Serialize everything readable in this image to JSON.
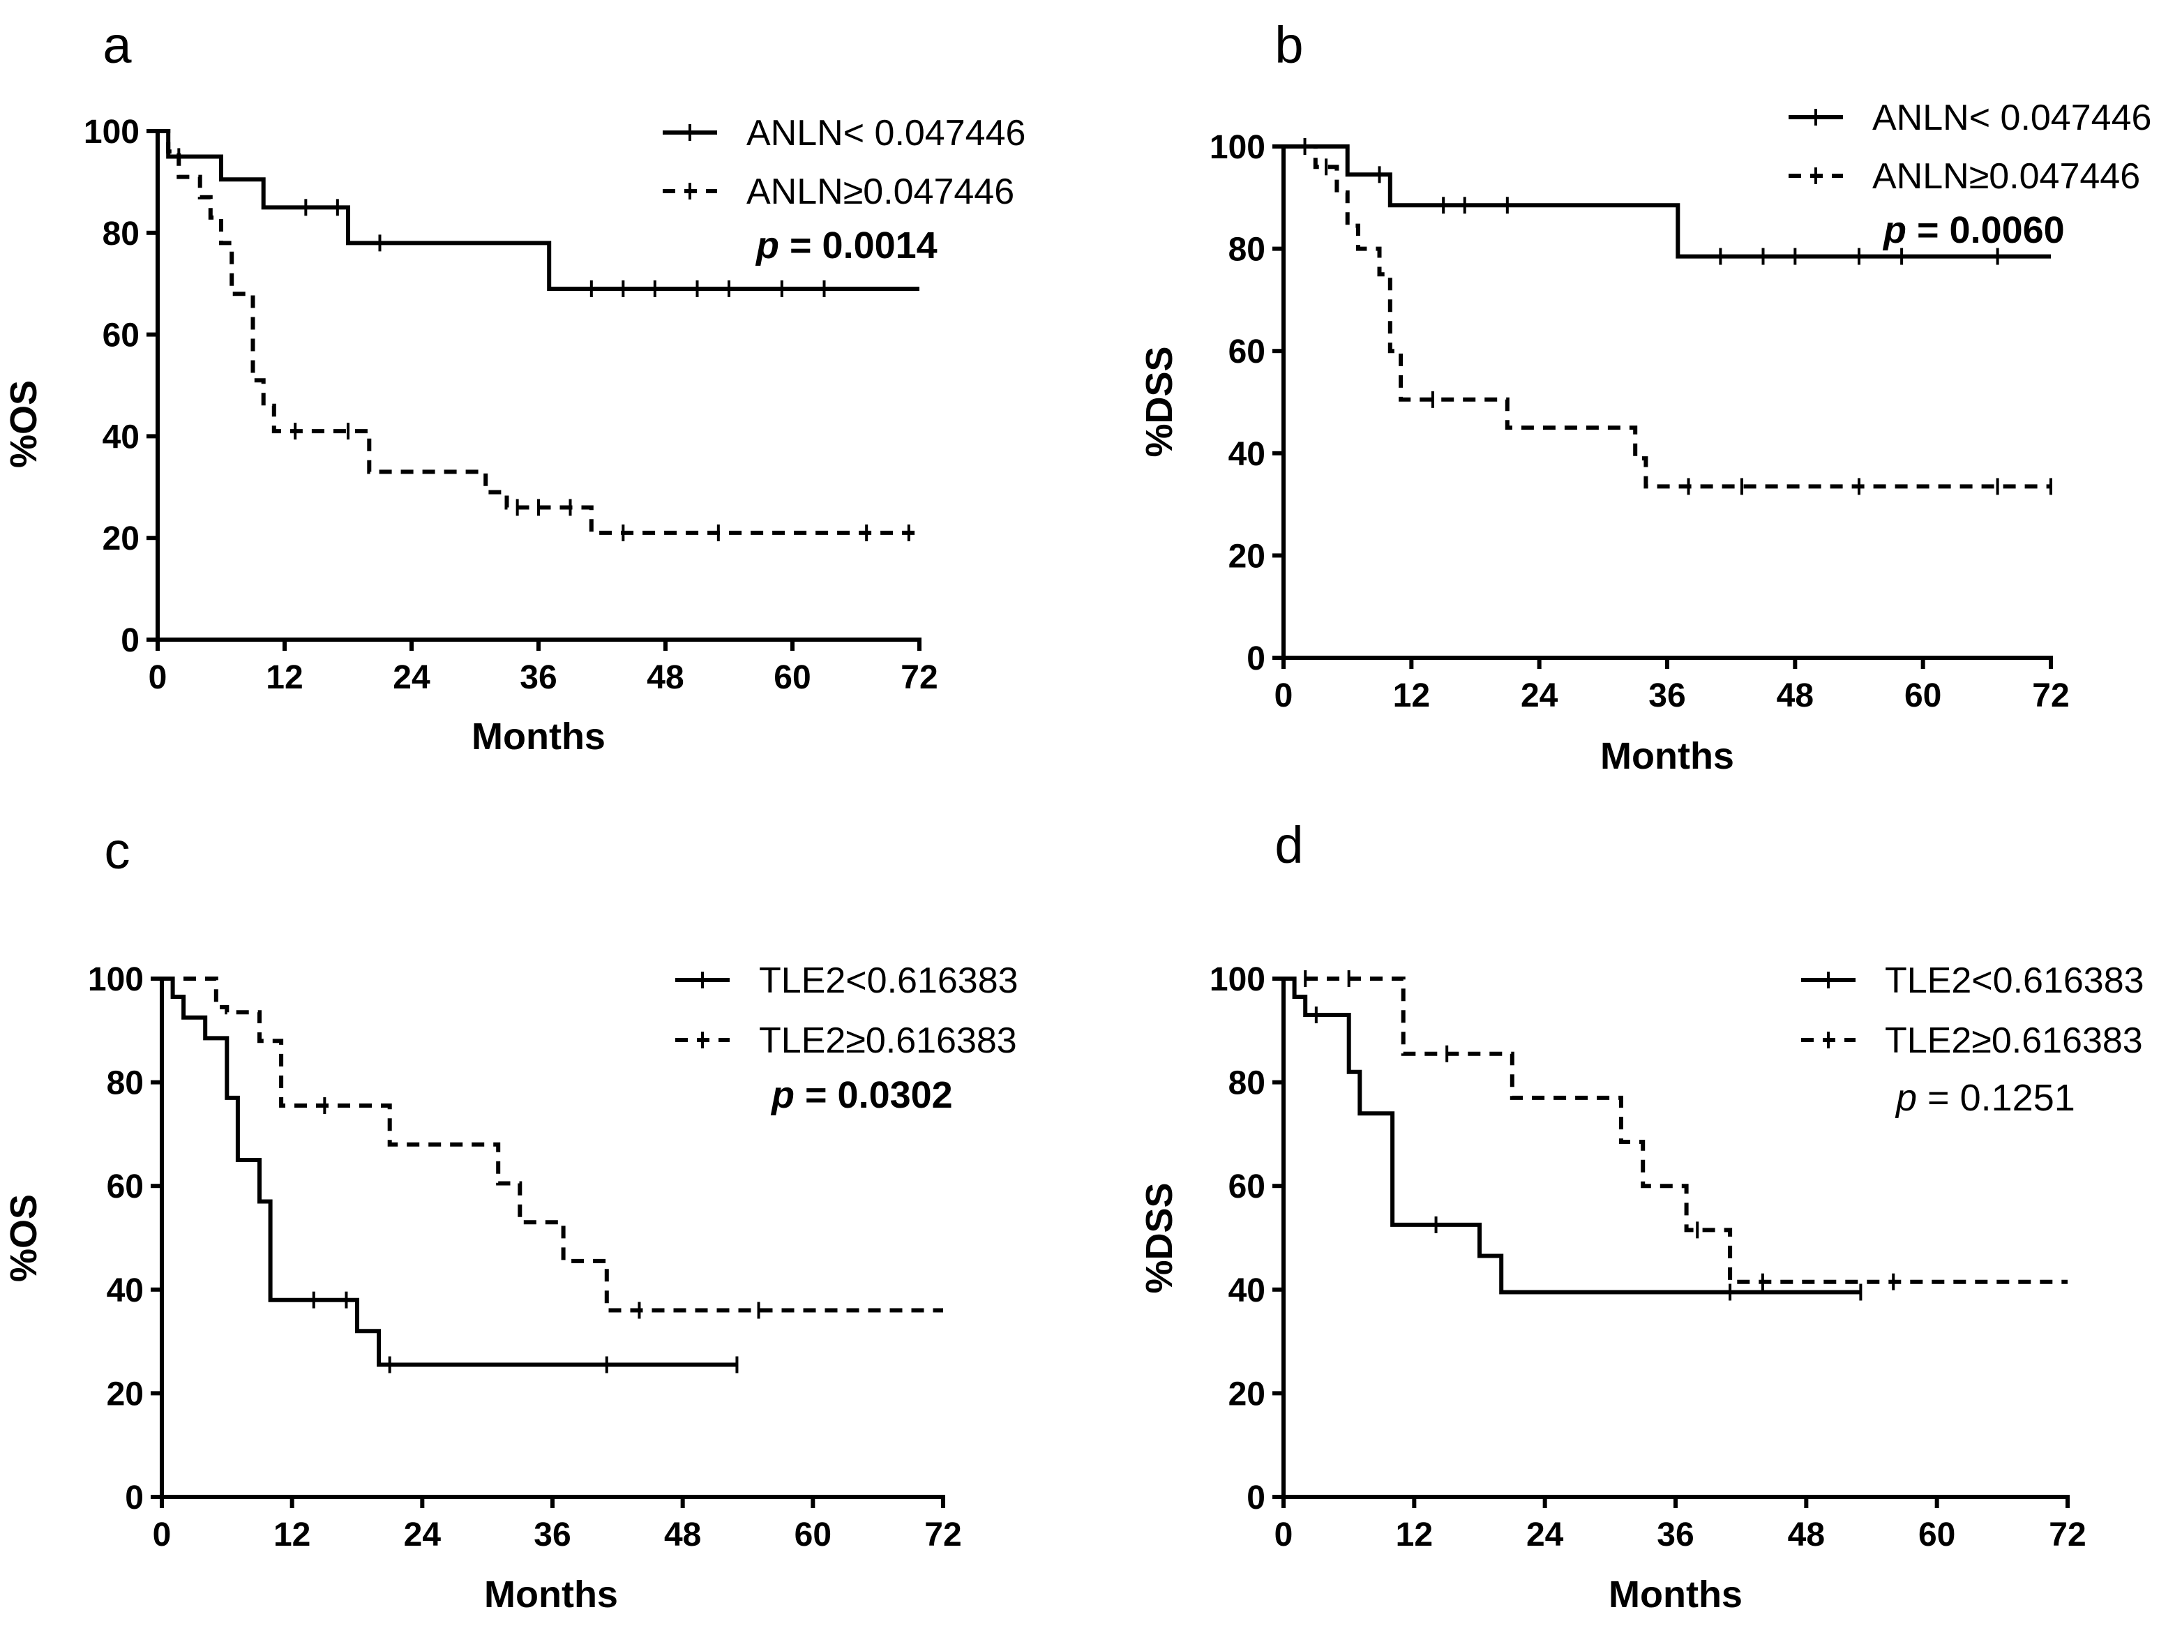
{
  "chart_data": [
    {
      "type": "line",
      "step": "km",
      "panel_label": "a",
      "xlabel": "Months",
      "ylabel": "%OS",
      "xlim": [
        0,
        72
      ],
      "ylim": [
        0,
        100
      ],
      "xticks": [
        "0",
        "12",
        "24",
        "36",
        "48",
        "60",
        "72"
      ],
      "yticks": [
        "0",
        "20",
        "40",
        "60",
        "80",
        "100"
      ],
      "legend_position": "top-right",
      "p_value": {
        "prefix": "p",
        "text": " = 0.0014",
        "bold": true
      },
      "series": [
        {
          "name": "ANLN< 0.047446",
          "style": "solid",
          "x": [
            0,
            1,
            1,
            6,
            6,
            10,
            10,
            18,
            18,
            37,
            37,
            72
          ],
          "y": [
            100,
            100,
            95,
            95,
            90.5,
            90.5,
            85,
            85,
            78,
            78,
            69,
            69
          ],
          "censor_x": [
            2,
            14,
            17,
            21,
            41,
            44,
            47,
            51,
            54,
            59,
            63
          ],
          "censor_y": [
            95,
            85,
            85,
            78,
            69,
            69,
            69,
            69,
            69,
            69,
            69
          ]
        },
        {
          "name": "ANLN≥0.047446",
          "style": "dashed",
          "x": [
            0,
            1,
            1,
            2,
            2,
            4,
            4,
            5,
            5,
            6,
            6,
            7,
            7,
            9,
            9,
            10,
            10,
            11,
            11,
            20,
            20,
            31,
            31,
            33,
            33,
            41,
            41,
            72
          ],
          "y": [
            100,
            100,
            96,
            96,
            91,
            91,
            87,
            87,
            83,
            83,
            78,
            78,
            68,
            68,
            51,
            51,
            46,
            46,
            41,
            41,
            33,
            33,
            29,
            29,
            26,
            26,
            21,
            21
          ],
          "censor_x": [
            1,
            13,
            18,
            34,
            36,
            39,
            44,
            53,
            67,
            71
          ],
          "censor_y": [
            98,
            41,
            41,
            26,
            26,
            26,
            21,
            21,
            21,
            21
          ]
        }
      ]
    },
    {
      "type": "line",
      "step": "km",
      "panel_label": "b",
      "xlabel": "Months",
      "ylabel": "%DSS",
      "xlim": [
        0,
        72
      ],
      "ylim": [
        0,
        100
      ],
      "xticks": [
        "0",
        "12",
        "24",
        "36",
        "48",
        "60",
        "72"
      ],
      "yticks": [
        "0",
        "20",
        "40",
        "60",
        "80",
        "100"
      ],
      "legend_position": "top-right",
      "p_value": {
        "prefix": "p",
        "text": " = 0.0060",
        "bold": true
      },
      "series": [
        {
          "name": "ANLN< 0.047446",
          "style": "solid",
          "x": [
            0,
            6,
            6,
            10,
            10,
            37,
            37,
            72
          ],
          "y": [
            100,
            100,
            94.5,
            94.5,
            88.5,
            88.5,
            78.5,
            78.5
          ],
          "censor_x": [
            9,
            15,
            17,
            21,
            41,
            45,
            48,
            54,
            58,
            67
          ],
          "censor_y": [
            94.5,
            88.5,
            88.5,
            88.5,
            78.5,
            78.5,
            78.5,
            78.5,
            78.5,
            78.5
          ]
        },
        {
          "name": "ANLN≥0.047446",
          "style": "dashed",
          "x": [
            0,
            3,
            3,
            5,
            5,
            6,
            6,
            7,
            7,
            9,
            9,
            10,
            10,
            11,
            11,
            21,
            21,
            33,
            33,
            34,
            34,
            72
          ],
          "y": [
            100,
            100,
            96,
            96,
            91,
            91,
            84.5,
            84.5,
            80,
            80,
            75,
            75,
            60,
            60,
            50.5,
            50.5,
            45,
            45,
            39,
            39,
            33.5,
            33.5
          ],
          "censor_x": [
            2,
            4,
            14,
            38,
            43,
            54,
            67,
            72
          ],
          "censor_y": [
            100,
            96,
            50.5,
            33.5,
            33.5,
            33.5,
            33.5,
            33.5
          ]
        }
      ]
    },
    {
      "type": "line",
      "step": "km",
      "panel_label": "c",
      "xlabel": "Months",
      "ylabel": "%OS",
      "xlim": [
        0,
        72
      ],
      "ylim": [
        0,
        100
      ],
      "xticks": [
        "0",
        "12",
        "24",
        "36",
        "48",
        "60",
        "72"
      ],
      "yticks": [
        "0",
        "20",
        "40",
        "60",
        "80",
        "100"
      ],
      "legend_position": "top-right",
      "p_value": {
        "prefix": "p",
        "text": " = 0.0302",
        "bold": true
      },
      "series": [
        {
          "name": "TLE2<0.616383",
          "style": "solid",
          "x": [
            0,
            1,
            1,
            2,
            2,
            4,
            4,
            6,
            6,
            7,
            7,
            9,
            9,
            10,
            10,
            18,
            18,
            20,
            20,
            53
          ],
          "y": [
            100,
            100,
            96.5,
            96.5,
            92.5,
            92.5,
            88.5,
            88.5,
            77,
            77,
            65,
            65,
            57,
            57,
            38,
            38,
            32,
            32,
            25.5,
            25.5
          ],
          "censor_x": [
            14,
            17,
            21,
            41,
            53
          ],
          "censor_y": [
            38,
            38,
            25.5,
            25.5,
            25.5
          ]
        },
        {
          "name": "TLE2≥0.616383",
          "style": "dashed",
          "x": [
            0,
            5,
            5,
            6,
            6,
            9,
            9,
            11,
            11,
            21,
            21,
            31,
            31,
            33,
            33,
            37,
            37,
            41,
            41,
            72
          ],
          "y": [
            100,
            100,
            94.5,
            94.5,
            93.5,
            93.5,
            88,
            88,
            75.5,
            75.5,
            68,
            68,
            60.5,
            60.5,
            53,
            53,
            45.5,
            45.5,
            36,
            36
          ],
          "censor_x": [
            15,
            44,
            55
          ],
          "censor_y": [
            75.5,
            36,
            36
          ]
        }
      ]
    },
    {
      "type": "line",
      "step": "km",
      "panel_label": "d",
      "xlabel": "Months",
      "ylabel": "%DSS",
      "xlim": [
        0,
        72
      ],
      "ylim": [
        0,
        100
      ],
      "xticks": [
        "0",
        "12",
        "24",
        "36",
        "48",
        "60",
        "72"
      ],
      "yticks": [
        "0",
        "20",
        "40",
        "60",
        "80",
        "100"
      ],
      "legend_position": "top-right",
      "p_value": {
        "prefix": "p",
        "text": " = 0.1251",
        "bold": false
      },
      "series": [
        {
          "name": "TLE2<0.616383",
          "style": "solid",
          "x": [
            0,
            1,
            1,
            2,
            2,
            6,
            6,
            7,
            7,
            10,
            10,
            18,
            18,
            20,
            20,
            53
          ],
          "y": [
            100,
            100,
            96.5,
            96.5,
            93,
            93,
            82,
            82,
            74,
            74,
            52.5,
            52.5,
            46.5,
            46.5,
            39.5,
            39.5
          ],
          "censor_x": [
            3,
            14,
            41,
            53
          ],
          "censor_y": [
            93,
            52.5,
            39.5,
            39.5
          ]
        },
        {
          "name": "TLE2≥0.616383",
          "style": "dashed",
          "x": [
            0,
            11,
            11,
            21,
            21,
            31,
            31,
            33,
            33,
            37,
            37,
            41,
            41,
            72
          ],
          "y": [
            100,
            100,
            85.5,
            85.5,
            77,
            77,
            68.5,
            68.5,
            60,
            60,
            51.5,
            51.5,
            41.5,
            41.5
          ],
          "censor_x": [
            2,
            6,
            15,
            38,
            44,
            56
          ],
          "censor_y": [
            100,
            100,
            85.5,
            51.5,
            41.5,
            41.5
          ]
        }
      ]
    }
  ]
}
